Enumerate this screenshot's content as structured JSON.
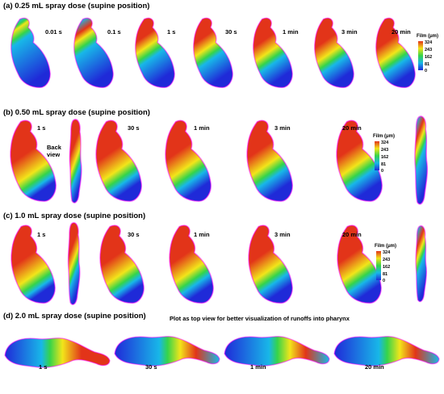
{
  "colors": {
    "low": "#1f2ad8",
    "mid_low": "#18b7e8",
    "mid": "#35d44a",
    "mid_high": "#f2e51a",
    "high": "#e23419",
    "edge": "#ff00ff"
  },
  "legend": {
    "title": "Film (μm)",
    "ticks": [
      "324",
      "243",
      "162",
      "81",
      "0"
    ]
  },
  "panels": [
    {
      "title": "(a) 0.25 mL spray dose (supine position)",
      "times": [
        "0.01 s",
        "0.1 s",
        "1 s",
        "30 s",
        "1 min",
        "3 min",
        "20 min"
      ],
      "coverage": [
        0.15,
        0.35,
        0.55,
        0.6,
        0.7,
        0.72,
        0.75
      ]
    },
    {
      "title": "(b) 0.50 mL spray dose (supine position)",
      "back_view_label": "Back view",
      "times": [
        "1 s",
        "30 s",
        "1 min",
        "3 min",
        "20 min"
      ],
      "coverage": [
        0.95,
        0.9,
        0.85,
        0.8,
        0.8
      ]
    },
    {
      "title": "(c) 1.0 mL spray dose (supine position)",
      "times": [
        "1 s",
        "30 s",
        "1 min",
        "3 min",
        "20 min"
      ],
      "coverage": [
        0.95,
        0.92,
        0.88,
        0.85,
        0.85
      ]
    },
    {
      "title": "(d) 2.0 mL spray dose (supine position)",
      "note": "Plot as top view for better visualization of runoffs into pharynx",
      "times": [
        "1 s",
        "30 s",
        "1 min",
        "20 min"
      ],
      "coverage": [
        0.6,
        0.5,
        0.5,
        0.5
      ]
    }
  ]
}
